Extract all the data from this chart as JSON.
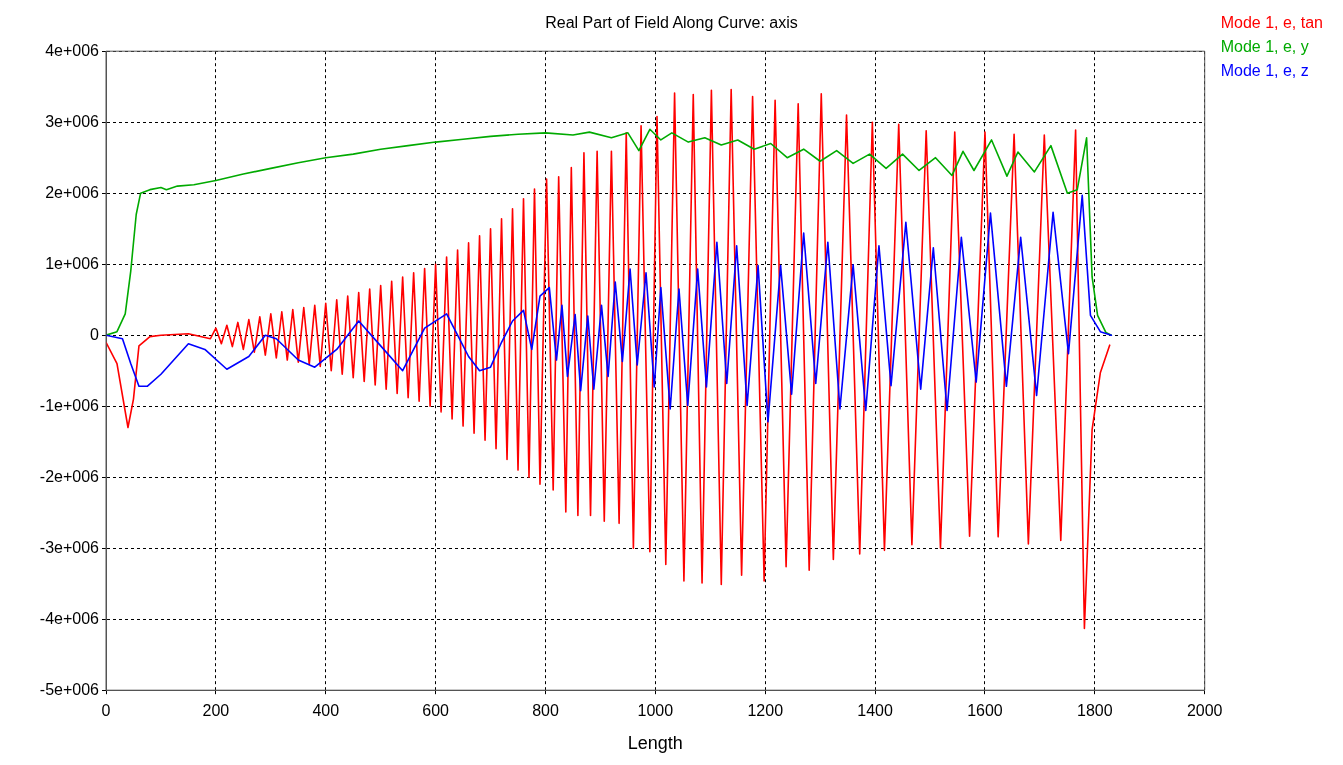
{
  "chart_data": {
    "type": "line",
    "title": "Real Part of Field Along Curve: axis",
    "xlabel": "Length",
    "xlim": [
      0,
      2000
    ],
    "xticks": [
      0,
      200,
      400,
      600,
      800,
      1000,
      1200,
      1400,
      1600,
      1800,
      2000
    ],
    "ylim": [
      -5000000.0,
      4000000.0
    ],
    "yticks": [
      {
        "value": -5000000.0,
        "label": "-5e+006"
      },
      {
        "value": -4000000.0,
        "label": "-4e+006"
      },
      {
        "value": -3000000.0,
        "label": "-3e+006"
      },
      {
        "value": -2000000.0,
        "label": "-2e+006"
      },
      {
        "value": -1000000.0,
        "label": "-1e+006"
      },
      {
        "value": 0,
        "label": "0"
      },
      {
        "value": 1000000.0,
        "label": "1e+006"
      },
      {
        "value": 2000000.0,
        "label": "2e+006"
      },
      {
        "value": 3000000.0,
        "label": "3e+006"
      },
      {
        "value": 4000000.0,
        "label": "4e+006"
      }
    ],
    "grid": true,
    "legend": "top right",
    "marker": "none",
    "line_style": "solid",
    "series": [
      {
        "name": "Mode 1, e, tan",
        "color": "#ff0000",
        "x": [
          0,
          20,
          40,
          50,
          60,
          80,
          100,
          150,
          190,
          200,
          210,
          220,
          230,
          240,
          250,
          260,
          270,
          280,
          290,
          300,
          310,
          320,
          330,
          340,
          350,
          360,
          370,
          380,
          390,
          400,
          410,
          420,
          430,
          440,
          450,
          460,
          470,
          480,
          490,
          500,
          510,
          520,
          530,
          540,
          550,
          560,
          570,
          580,
          590,
          600,
          610,
          620,
          630,
          640,
          650,
          660,
          670,
          680,
          690,
          700,
          710,
          720,
          730,
          740,
          750,
          760,
          770,
          780,
          790,
          802,
          814,
          824,
          837,
          847,
          859,
          870,
          882,
          894,
          907,
          920,
          934,
          947,
          960,
          974,
          990,
          1003,
          1019,
          1035,
          1052,
          1069,
          1085,
          1102,
          1120,
          1138,
          1157,
          1177,
          1198,
          1218,
          1238,
          1260,
          1280,
          1302,
          1324,
          1348,
          1372,
          1395,
          1417,
          1443,
          1467,
          1493,
          1519,
          1545,
          1572,
          1600,
          1624,
          1653,
          1679,
          1708,
          1738,
          1765,
          1781,
          1795,
          1810,
          1827
        ],
        "values": [
          -100000.0,
          -400000.0,
          -1300000.0,
          -900000.0,
          -150000.0,
          -20000.0,
          0,
          20000.0,
          -50000.0,
          100000.0,
          -120000.0,
          140000.0,
          -160000.0,
          180000.0,
          -200000.0,
          220000.0,
          -240000.0,
          260000.0,
          -280000.0,
          300000.0,
          -320000.0,
          330000.0,
          -350000.0,
          360000.0,
          -380000.0,
          390000.0,
          -410000.0,
          420000.0,
          -440000.0,
          450000.0,
          -500000.0,
          500000.0,
          -550000.0,
          550000.0,
          -600000.0,
          600000.0,
          -650000.0,
          650000.0,
          -700000.0,
          700000.0,
          -760000.0,
          760000.0,
          -820000.0,
          820000.0,
          -880000.0,
          880000.0,
          -930000.0,
          940000.0,
          -1000000.0,
          1000000.0,
          -1080000.0,
          1100000.0,
          -1180000.0,
          1200000.0,
          -1280000.0,
          1300000.0,
          -1380000.0,
          1400000.0,
          -1480000.0,
          1500000.0,
          -1600000.0,
          1640000.0,
          -1750000.0,
          1780000.0,
          -1900000.0,
          1920000.0,
          -2000000.0,
          2060000.0,
          -2100000.0,
          2200000.0,
          -2180000.0,
          2230000.0,
          -2490000.0,
          2360000.0,
          -2540000.0,
          2570000.0,
          -2540000.0,
          2590000.0,
          -2620000.0,
          2590000.0,
          -2650000.0,
          2850000.0,
          -3000000.0,
          2950000.0,
          -3050000.0,
          3080000.0,
          -3230000.0,
          3410000.0,
          -3460000.0,
          3390000.0,
          -3490000.0,
          3450000.0,
          -3510000.0,
          3460000.0,
          -3380000.0,
          3360000.0,
          -3460000.0,
          3310000.0,
          -3260000.0,
          3260000.0,
          -3310000.0,
          3400000.0,
          -3160000.0,
          3100000.0,
          -3080000.0,
          3000000.0,
          -3030000.0,
          2970000.0,
          -2950000.0,
          2880000.0,
          -3000000.0,
          2860000.0,
          -2830000.0,
          2860000.0,
          -2840000.0,
          2830000.0,
          -2940000.0,
          2820000.0,
          -2890000.0,
          2890000.0,
          -4130000.0,
          -1330000.0,
          -530000.0,
          -140000.0
        ]
      },
      {
        "name": "Mode 1, e, y",
        "color": "#00aa00",
        "x": [
          0,
          20,
          35,
          45,
          55,
          63,
          80,
          100,
          110,
          130,
          160,
          200,
          250,
          300,
          350,
          400,
          450,
          500,
          550,
          600,
          650,
          700,
          750,
          800,
          850,
          880,
          920,
          950,
          970,
          990,
          1010,
          1030,
          1060,
          1090,
          1120,
          1150,
          1180,
          1210,
          1240,
          1270,
          1300,
          1330,
          1360,
          1390,
          1420,
          1450,
          1480,
          1510,
          1540,
          1560,
          1580,
          1612,
          1640,
          1660,
          1690,
          1720,
          1750,
          1768,
          1785,
          1795,
          1805,
          1820,
          1830
        ],
        "values": [
          0,
          50000.0,
          300000.0,
          900000.0,
          1700000.0,
          2000000.0,
          2050000.0,
          2080000.0,
          2050000.0,
          2100000.0,
          2120000.0,
          2180000.0,
          2270000.0,
          2350000.0,
          2430000.0,
          2500000.0,
          2550000.0,
          2620000.0,
          2670000.0,
          2720000.0,
          2760000.0,
          2800000.0,
          2830000.0,
          2850000.0,
          2820000.0,
          2860000.0,
          2780000.0,
          2850000.0,
          2600000.0,
          2900000.0,
          2750000.0,
          2850000.0,
          2720000.0,
          2780000.0,
          2680000.0,
          2750000.0,
          2620000.0,
          2700000.0,
          2500000.0,
          2620000.0,
          2450000.0,
          2600000.0,
          2420000.0,
          2550000.0,
          2350000.0,
          2550000.0,
          2320000.0,
          2500000.0,
          2250000.0,
          2590000.0,
          2320000.0,
          2750000.0,
          2240000.0,
          2580000.0,
          2300000.0,
          2670000.0,
          2000000.0,
          2050000.0,
          2780000.0,
          820000.0,
          280000.0,
          40000.0,
          0
        ]
      },
      {
        "name": "Mode 1, e, z",
        "color": "#0000ff",
        "x": [
          0,
          30,
          45,
          60,
          75,
          100,
          150,
          180,
          220,
          260,
          290,
          310,
          350,
          380,
          420,
          460,
          500,
          540,
          580,
          620,
          640,
          660,
          680,
          700,
          720,
          740,
          760,
          775,
          790,
          807,
          820,
          830,
          840,
          854,
          864,
          877,
          888,
          902,
          914,
          927,
          940,
          954,
          967,
          983,
          998,
          1010,
          1027,
          1043,
          1059,
          1077,
          1093,
          1112,
          1130,
          1148,
          1167,
          1187,
          1205,
          1228,
          1248,
          1270,
          1292,
          1314,
          1336,
          1360,
          1383,
          1407,
          1429,
          1456,
          1483,
          1506,
          1531,
          1557,
          1584,
          1610,
          1639,
          1665,
          1694,
          1724,
          1752,
          1777,
          1792,
          1810,
          1830
        ],
        "values": [
          0,
          -50000.0,
          -400000.0,
          -720000.0,
          -720000.0,
          -550000.0,
          -120000.0,
          -200000.0,
          -480000.0,
          -300000.0,
          0,
          -50000.0,
          -350000.0,
          -450000.0,
          -200000.0,
          200000.0,
          -150000.0,
          -500000.0,
          100000.0,
          300000.0,
          0,
          -300000.0,
          -500000.0,
          -450000.0,
          -100000.0,
          200000.0,
          350000.0,
          -200000.0,
          550000.0,
          670000.0,
          -350000.0,
          420000.0,
          -580000.0,
          290000.0,
          -780000.0,
          270000.0,
          -760000.0,
          420000.0,
          -580000.0,
          750000.0,
          -370000.0,
          930000.0,
          -420000.0,
          880000.0,
          -730000.0,
          670000.0,
          -1040000.0,
          650000.0,
          -990000.0,
          930000.0,
          -730000.0,
          1310000.0,
          -680000.0,
          1260000.0,
          -990000.0,
          980000.0,
          -1220000.0,
          980000.0,
          -830000.0,
          1440000.0,
          -680000.0,
          1310000.0,
          -1040000.0,
          990000.0,
          -1060000.0,
          1260000.0,
          -710000.0,
          1590000.0,
          -760000.0,
          1230000.0,
          -1060000.0,
          1380000.0,
          -660000.0,
          1720000.0,
          -720000.0,
          1380000.0,
          -850000.0,
          1730000.0,
          -260000.0,
          1970000.0,
          280000.0,
          50000.0,
          0
        ]
      }
    ]
  }
}
